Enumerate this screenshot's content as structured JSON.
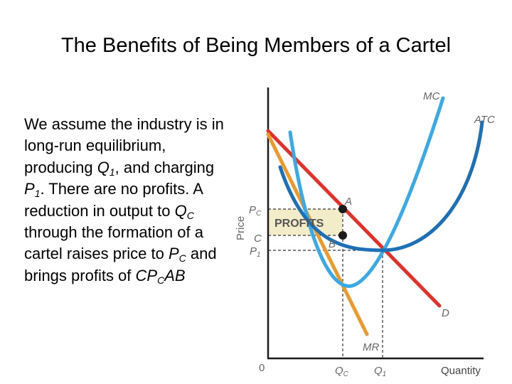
{
  "slide": {
    "title": "The Benefits of Being Members of a Cartel"
  },
  "body": {
    "t1": "We assume the industry is in long-run equilibrium, producing ",
    "q": "Q",
    "q_sub": "1",
    "t2": ", and charging ",
    "p": "P",
    "p_sub": "1",
    "t3": ". There are no profits.  A reduction in output to ",
    "qc": "Q",
    "qc_sub": "C",
    "t4": " through the formation of a cartel raises price to ",
    "pc": "P",
    "pc_sub": "C",
    "t5": " and brings profits of ",
    "c": "CP",
    "c_sub": "C",
    "ab": "AB"
  },
  "diagram": {
    "curves": {
      "mc": "MC",
      "atc": "ATC",
      "d": "D",
      "mr": "MR"
    },
    "axes": {
      "y_label": "Price",
      "x_label": "Quantity",
      "origin": "0"
    },
    "price_labels": {
      "pc": "P",
      "pc_sub": "C",
      "c": "C",
      "p1": "P",
      "p1_sub": "1"
    },
    "quantity_labels": {
      "qc": "Q",
      "qc_sub": "C",
      "q1": "Q",
      "q1_sub": "1"
    },
    "points": {
      "a": "A",
      "b": "B"
    },
    "region_label": "PROFITS",
    "colors": {
      "demand": "#e2302a",
      "marginal_revenue": "#eb9a2c",
      "mc": "#3aa9e6",
      "atc": "#1d6fb6",
      "profit_fill": "#f2ecc8",
      "axis": "#1a1a1a",
      "label_gray": "#666666"
    }
  }
}
